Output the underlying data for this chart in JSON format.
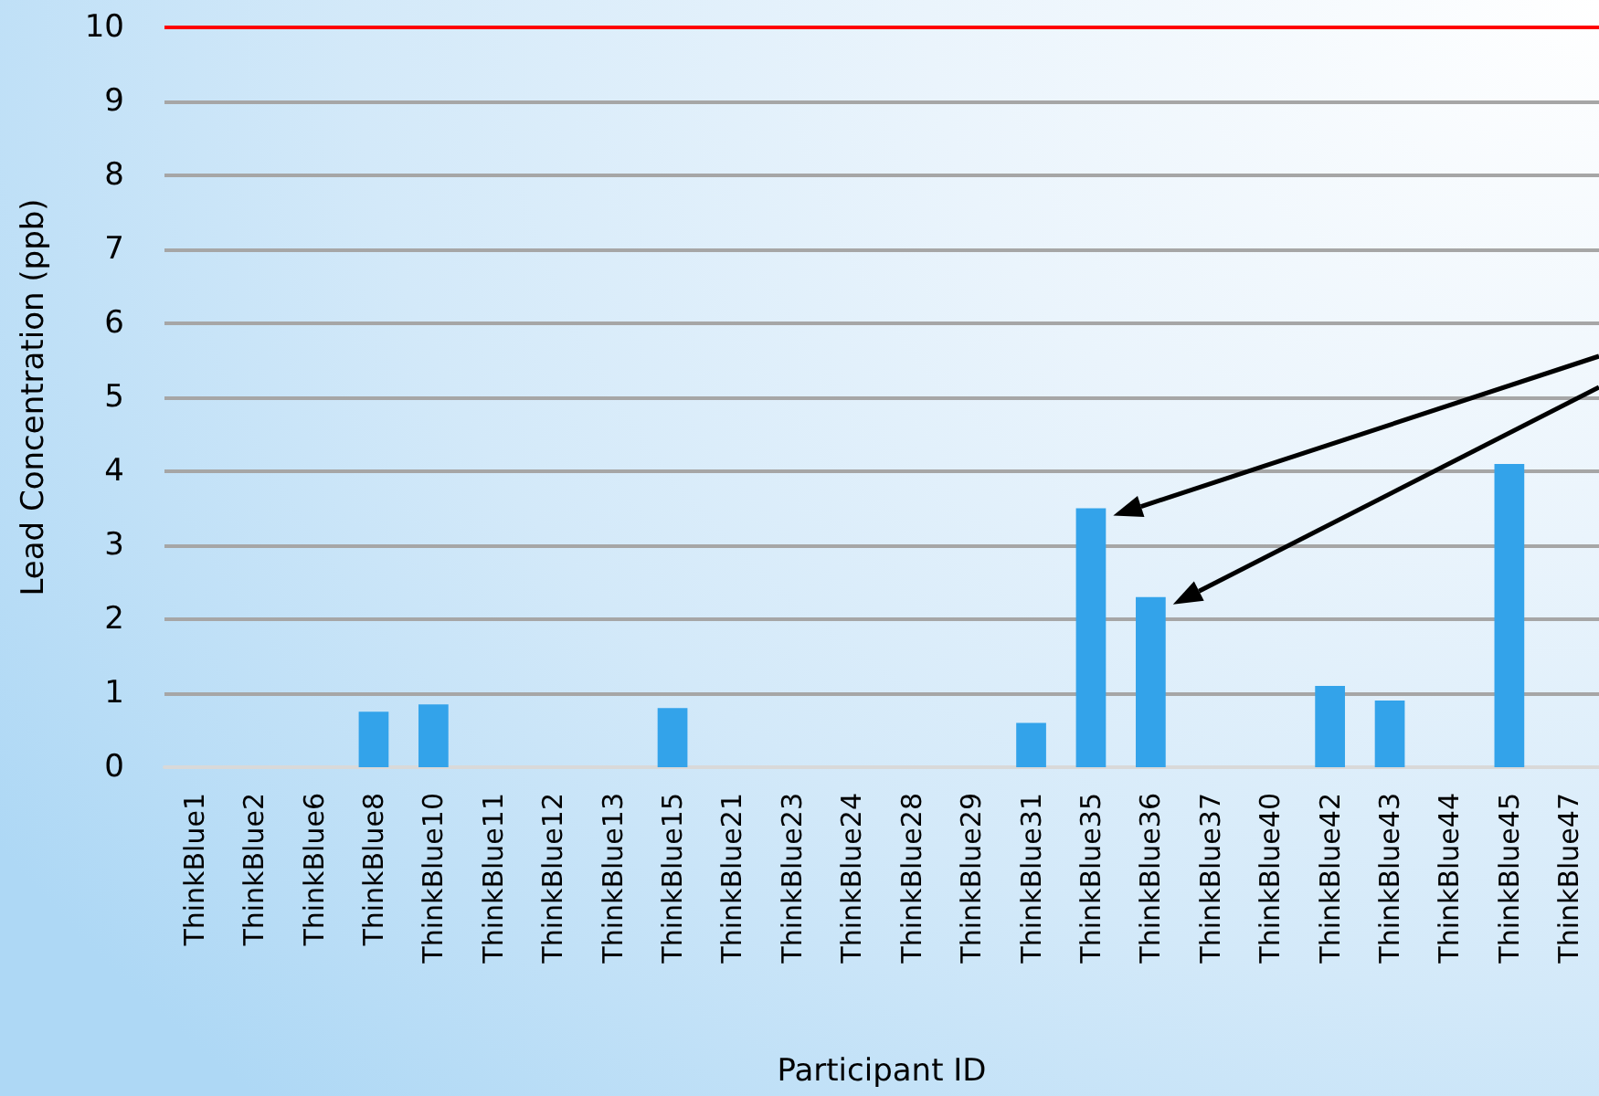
{
  "chart_data": {
    "type": "bar",
    "xlabel": "Participant ID",
    "ylabel": "Lead Concentration (ppb)",
    "categories": [
      "ThinkBlue1",
      "ThinkBlue2",
      "ThinkBlue6",
      "ThinkBlue8",
      "ThinkBlue10",
      "ThinkBlue11",
      "ThinkBlue12",
      "ThinkBlue13",
      "ThinkBlue15",
      "ThinkBlue21",
      "ThinkBlue23",
      "ThinkBlue24",
      "ThinkBlue28",
      "ThinkBlue29",
      "ThinkBlue31",
      "ThinkBlue35",
      "ThinkBlue36",
      "ThinkBlue37",
      "ThinkBlue40",
      "ThinkBlue42",
      "ThinkBlue43",
      "ThinkBlue44",
      "ThinkBlue45",
      "ThinkBlue47"
    ],
    "values": [
      0,
      0,
      0,
      0.75,
      0.85,
      0,
      0,
      0,
      0.8,
      0,
      0,
      0,
      0,
      0,
      0.6,
      3.5,
      2.3,
      0,
      0,
      1.1,
      0.9,
      0,
      4.1,
      0
    ],
    "color": "#33a3ea",
    "ylim": [
      0,
      10
    ],
    "yticks": [
      0,
      1,
      2,
      3,
      4,
      5,
      6,
      7,
      8,
      9,
      10
    ],
    "grid": "y",
    "ref_lines": [
      {
        "axis": "y",
        "value": 10,
        "color": "#ff0000"
      }
    ]
  }
}
